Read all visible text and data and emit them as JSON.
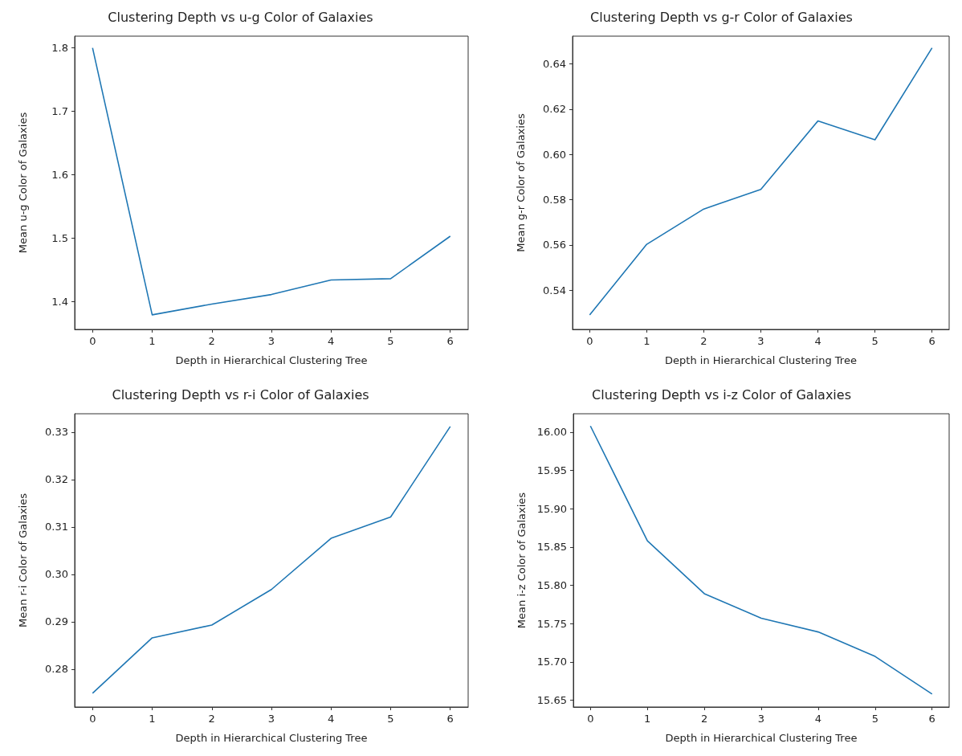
{
  "chart_data": [
    {
      "type": "line",
      "title": "Clustering Depth vs u-g Color of Galaxies",
      "xlabel": "Depth in Hierarchical Clustering Tree",
      "ylabel": "Mean u-g Color of Galaxies",
      "x": [
        0,
        1,
        2,
        3,
        4,
        5,
        6
      ],
      "series": [
        {
          "color": "#1f77b4",
          "values": [
            1.8,
            1.379,
            1.396,
            1.411,
            1.434,
            1.436,
            1.503
          ]
        }
      ],
      "xlim": [
        -0.3,
        6.3
      ],
      "xticks": [
        0,
        1,
        2,
        3,
        4,
        5,
        6
      ],
      "ylim": [
        1.356,
        1.8185
      ],
      "yticks": [
        1.4,
        1.5,
        1.6,
        1.7,
        1.8
      ],
      "grid": false,
      "marker": "none",
      "line_style": "solid"
    },
    {
      "type": "line",
      "title": "Clustering Depth vs g-r Color of Galaxies",
      "xlabel": "Depth in Hierarchical Clustering Tree",
      "ylabel": "Mean g-r Color of Galaxies",
      "x": [
        0,
        1,
        2,
        3,
        4,
        5,
        6
      ],
      "series": [
        {
          "color": "#1f77b4",
          "values": [
            0.5291,
            0.5603,
            0.5759,
            0.5846,
            0.6148,
            0.6065,
            0.6471
          ]
        }
      ],
      "xlim": [
        -0.3,
        6.3
      ],
      "xticks": [
        0,
        1,
        2,
        3,
        4,
        5,
        6
      ],
      "ylim": [
        0.5227,
        0.6523
      ],
      "yticks": [
        0.54,
        0.56,
        0.58,
        {
          "value": 0.6,
          "label": "0.60"
        },
        0.62,
        0.64
      ],
      "grid": false,
      "marker": "none",
      "line_style": "solid"
    },
    {
      "type": "line",
      "title": "Clustering Depth vs r-i Color of Galaxies",
      "xlabel": "Depth in Hierarchical Clustering Tree",
      "ylabel": "Mean r-i Color of Galaxies",
      "x": [
        0,
        1,
        2,
        3,
        4,
        5,
        6
      ],
      "series": [
        {
          "color": "#1f77b4",
          "values": [
            0.2749,
            0.2866,
            0.2893,
            0.2968,
            0.3076,
            0.3121,
            0.3312
          ]
        }
      ],
      "xlim": [
        -0.3,
        6.3
      ],
      "xticks": [
        0,
        1,
        2,
        3,
        4,
        5,
        6
      ],
      "ylim": [
        0.272,
        0.3339
      ],
      "yticks": [
        0.28,
        0.29,
        {
          "value": 0.3,
          "label": "0.30"
        },
        0.31,
        0.32,
        0.33
      ],
      "grid": false,
      "marker": "none",
      "line_style": "solid"
    },
    {
      "type": "line",
      "title": "Clustering Depth vs i-z Color of Galaxies",
      "xlabel": "Depth in Hierarchical Clustering Tree",
      "ylabel": "Mean i-z Color of Galaxies",
      "x": [
        0,
        1,
        2,
        3,
        4,
        5,
        6
      ],
      "series": [
        {
          "color": "#1f77b4",
          "values": [
            16.008,
            15.858,
            15.789,
            15.757,
            15.739,
            15.707,
            15.658
          ]
        }
      ],
      "xlim": [
        -0.3,
        6.3
      ],
      "xticks": [
        0,
        1,
        2,
        3,
        4,
        5,
        6
      ],
      "ylim": [
        15.641,
        16.024
      ],
      "yticks": [
        15.65,
        {
          "value": 15.7,
          "label": "15.70"
        },
        15.75,
        {
          "value": 15.8,
          "label": "15.80"
        },
        15.85,
        {
          "value": 15.9,
          "label": "15.90"
        },
        15.95,
        {
          "value": 16,
          "label": "16.00"
        }
      ],
      "grid": false,
      "marker": "none",
      "line_style": "solid"
    }
  ]
}
